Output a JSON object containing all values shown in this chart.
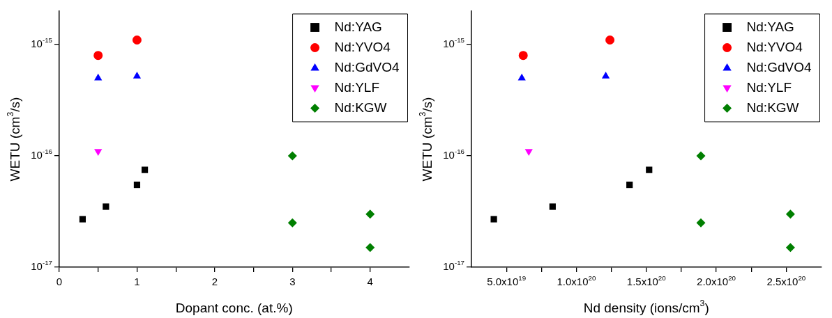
{
  "chart_data": [
    {
      "type": "scatter",
      "xlabel": "Dopant conc. (at.%)",
      "ylabel": "WETU (cm$^{3}$/s)",
      "log": "y",
      "grid": false,
      "legend": "top right",
      "xlim": [
        0,
        4.5
      ],
      "xticks": [
        0,
        {
          "value": 0.5,
          "label": null
        },
        1,
        {
          "value": 1.5,
          "label": null
        },
        2,
        {
          "value": 2.5,
          "label": null
        },
        3,
        {
          "value": 3.5,
          "label": null
        },
        4
      ],
      "ylim": [
        1e-17,
        2e-15
      ],
      "yticks": [
        {
          "value": 1e-17,
          "label": "10$^{-17}$"
        },
        {
          "value": 1e-16,
          "label": "10$^{-16}$"
        },
        {
          "value": 1e-15,
          "label": "10$^{-15}$"
        }
      ],
      "series": [
        {
          "name": "Nd:YAG",
          "color": "#000000",
          "marker": "square",
          "x": [
            0.3,
            0.6,
            1.0,
            1.1
          ],
          "values": [
            2.7e-17,
            3.5e-17,
            5.5e-17,
            7.5e-17
          ]
        },
        {
          "name": "Nd:YVO4",
          "color": "#ff0000",
          "marker": "circle",
          "x": [
            0.5,
            1.0
          ],
          "values": [
            8e-16,
            1.1e-15
          ]
        },
        {
          "name": "Nd:GdVO4",
          "color": "#0000ff",
          "marker": "triangle",
          "x": [
            0.5,
            1.0
          ],
          "values": [
            5e-16,
            5.2e-16
          ]
        },
        {
          "name": "Nd:YLF",
          "color": "#ff00ff",
          "marker": "triangle-down",
          "x": [
            0.5
          ],
          "values": [
            1.1e-16
          ]
        },
        {
          "name": "Nd:KGW",
          "color": "#007f00",
          "marker": "diamond",
          "x": [
            3,
            3,
            4,
            4
          ],
          "values": [
            1e-16,
            2.5e-17,
            3e-17,
            1.5e-17
          ]
        }
      ]
    },
    {
      "type": "scatter",
      "xlabel": "Nd density (ions/cm$^{3}$)",
      "ylabel": "WETU (cm$^{3}$/s)",
      "log": "y",
      "grid": false,
      "legend": "top right",
      "xlim": [
        2.5e+19,
        2.75e+20
      ],
      "xticks": [
        {
          "value": 5e+19,
          "label": "5.0x10$^{19}$"
        },
        {
          "value": 7.5e+19,
          "label": null
        },
        {
          "value": 1e+20,
          "label": "1.0x10$^{20}$"
        },
        {
          "value": 1.25e+20,
          "label": null
        },
        {
          "value": 1.5e+20,
          "label": "1.5x10$^{20}$"
        },
        {
          "value": 1.75e+20,
          "label": null
        },
        {
          "value": 2e+20,
          "label": "2.0x10$^{20}$"
        },
        {
          "value": 2.25e+20,
          "label": null
        },
        {
          "value": 2.5e+20,
          "label": "2.5x10$^{20}$"
        }
      ],
      "ylim": [
        1e-17,
        2e-15
      ],
      "yticks": [
        {
          "value": 1e-17,
          "label": "10$^{-17}$"
        },
        {
          "value": 1e-16,
          "label": "10$^{-16}$"
        },
        {
          "value": 1e-15,
          "label": "10$^{-15}$"
        }
      ],
      "series": [
        {
          "name": "Nd:YAG",
          "color": "#000000",
          "marker": "square",
          "x": [
            4.1e+19,
            8.3e+19,
            1.38e+20,
            1.52e+20
          ],
          "values": [
            2.7e-17,
            3.5e-17,
            5.5e-17,
            7.5e-17
          ]
        },
        {
          "name": "Nd:YVO4",
          "color": "#ff0000",
          "marker": "circle",
          "x": [
            6.2e+19,
            1.24e+20
          ],
          "values": [
            8e-16,
            1.1e-15
          ]
        },
        {
          "name": "Nd:GdVO4",
          "color": "#0000ff",
          "marker": "triangle",
          "x": [
            6.1e+19,
            1.21e+20
          ],
          "values": [
            5e-16,
            5.2e-16
          ]
        },
        {
          "name": "Nd:YLF",
          "color": "#ff00ff",
          "marker": "triangle-down",
          "x": [
            6.6e+19
          ],
          "values": [
            1.1e-16
          ]
        },
        {
          "name": "Nd:KGW",
          "color": "#007f00",
          "marker": "diamond",
          "x": [
            1.89e+20,
            1.89e+20,
            2.53e+20,
            2.53e+20
          ],
          "values": [
            1e-16,
            2.5e-17,
            3e-17,
            1.5e-17
          ]
        }
      ]
    }
  ]
}
